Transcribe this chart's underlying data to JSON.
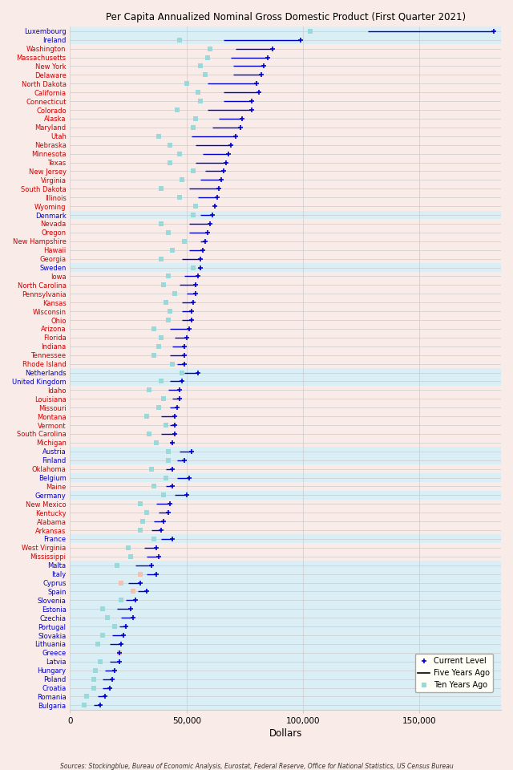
{
  "title": "Per Capita Annualized Nominal Gross Domestic Product (First Quarter 2021)",
  "xlabel": "Dollars",
  "source": "Sources: Stockingblue, Bureau of Economic Analysis, Eurostat, Federal Reserve, Office for National Statistics, US Census Bureau",
  "categories": [
    "Luxembourg",
    "Ireland",
    "Washington",
    "Massachusetts",
    "New York",
    "Delaware",
    "North Dakota",
    "California",
    "Connecticut",
    "Colorado",
    "Alaska",
    "Maryland",
    "Utah",
    "Nebraska",
    "Minnesota",
    "Texas",
    "New Jersey",
    "Virginia",
    "South Dakota",
    "Illinois",
    "Wyoming",
    "Denmark",
    "Nevada",
    "Oregon",
    "New Hampshire",
    "Hawaii",
    "Georgia",
    "Sweden",
    "Iowa",
    "North Carolina",
    "Pennsylvania",
    "Kansas",
    "Wisconsin",
    "Ohio",
    "Arizona",
    "Florida",
    "Indiana",
    "Tennessee",
    "Rhode Island",
    "Netherlands",
    "United Kingdom",
    "Idaho",
    "Louisiana",
    "Missouri",
    "Montana",
    "Vermont",
    "South Carolina",
    "Michigan",
    "Austria",
    "Finland",
    "Oklahoma",
    "Belgium",
    "Maine",
    "Germany",
    "New Mexico",
    "Kentucky",
    "Alabama",
    "Arkansas",
    "France",
    "West Virginia",
    "Mississippi",
    "Malta",
    "Italy",
    "Cyprus",
    "Spain",
    "Slovenia",
    "Estonia",
    "Czechia",
    "Portugal",
    "Slovakia",
    "Lithuania",
    "Greece",
    "Latvia",
    "Hungary",
    "Poland",
    "Croatia",
    "Romania",
    "Bulgaria"
  ],
  "eu_countries": [
    "Luxembourg",
    "Ireland",
    "Denmark",
    "Sweden",
    "Netherlands",
    "United Kingdom",
    "Austria",
    "Finland",
    "Belgium",
    "Germany",
    "France",
    "Malta",
    "Italy",
    "Cyprus",
    "Spain",
    "Slovenia",
    "Estonia",
    "Czechia",
    "Portugal",
    "Slovakia",
    "Lithuania",
    "Greece",
    "Latvia",
    "Hungary",
    "Poland",
    "Croatia",
    "Romania",
    "Bulgaria"
  ],
  "highlight_rows": [
    "Luxembourg",
    "Ireland",
    "Denmark",
    "Netherlands",
    "United Kingdom",
    "Austria",
    "Finland",
    "Belgium",
    "Germany",
    "France",
    "Malta",
    "Italy",
    "Cyprus",
    "Spain",
    "Slovenia",
    "Estonia",
    "Czechia",
    "Portugal",
    "Slovakia",
    "Lithuania",
    "Greece",
    "Latvia",
    "Hungary",
    "Poland",
    "Croatia",
    "Romania",
    "Bulgaria",
    "Sweden"
  ],
  "current": [
    182000,
    99000,
    87000,
    85000,
    83000,
    82000,
    80000,
    81000,
    78000,
    78000,
    74000,
    73000,
    71000,
    69000,
    68000,
    67000,
    66000,
    65000,
    64000,
    63000,
    62000,
    61000,
    60000,
    59000,
    58000,
    57000,
    56000,
    56000,
    55000,
    54000,
    54000,
    53000,
    52000,
    52000,
    51000,
    50000,
    49000,
    49000,
    49000,
    55000,
    48000,
    47000,
    47000,
    46000,
    45000,
    45000,
    45000,
    44000,
    52000,
    49000,
    44000,
    51000,
    44000,
    50000,
    43000,
    42000,
    40000,
    39000,
    44000,
    37000,
    38000,
    35000,
    37000,
    30000,
    33000,
    28000,
    26000,
    27000,
    24000,
    23000,
    22000,
    21000,
    21000,
    19000,
    18000,
    17000,
    15000,
    13000
  ],
  "five_years": [
    128000,
    66000,
    71000,
    69000,
    70000,
    70000,
    59000,
    66000,
    66000,
    59000,
    64000,
    61000,
    52000,
    54000,
    57000,
    54000,
    58000,
    56000,
    51000,
    55000,
    62000,
    56000,
    51000,
    51000,
    56000,
    51000,
    48000,
    55000,
    49000,
    47000,
    50000,
    48000,
    48000,
    48000,
    43000,
    45000,
    44000,
    43000,
    46000,
    49000,
    43000,
    42000,
    44000,
    43000,
    39000,
    43000,
    39000,
    43000,
    47000,
    46000,
    41000,
    46000,
    41000,
    45000,
    37000,
    38000,
    36000,
    35000,
    39000,
    32000,
    33000,
    28000,
    33000,
    25000,
    29000,
    24000,
    20000,
    22000,
    21000,
    18000,
    17000,
    20000,
    17000,
    15000,
    14000,
    14000,
    12000,
    10000
  ],
  "ten_years": [
    103000,
    47000,
    60000,
    59000,
    56000,
    58000,
    50000,
    55000,
    56000,
    46000,
    54000,
    53000,
    38000,
    43000,
    47000,
    43000,
    53000,
    48000,
    39000,
    47000,
    54000,
    53000,
    39000,
    42000,
    49000,
    44000,
    39000,
    53000,
    42000,
    40000,
    45000,
    41000,
    43000,
    42000,
    36000,
    39000,
    38000,
    36000,
    44000,
    48000,
    39000,
    34000,
    40000,
    38000,
    33000,
    41000,
    34000,
    37000,
    42000,
    42000,
    35000,
    41000,
    36000,
    40000,
    30000,
    33000,
    31000,
    30000,
    36000,
    25000,
    26000,
    20000,
    30000,
    22000,
    27000,
    22000,
    14000,
    16000,
    19000,
    14000,
    12000,
    21000,
    13000,
    11000,
    10000,
    10000,
    7000,
    6000
  ],
  "bg_pink": "#f9ece8",
  "bg_blue": "#daeef5",
  "grid_color": "#cccccc",
  "line_color": "#0000cc",
  "ten_color_normal": "#99d9d9",
  "ten_color_pink": "#f4c0b0",
  "dot_color": "#0000cc",
  "label_eu_color": "#0000cc",
  "label_us_color": "#cc0000"
}
